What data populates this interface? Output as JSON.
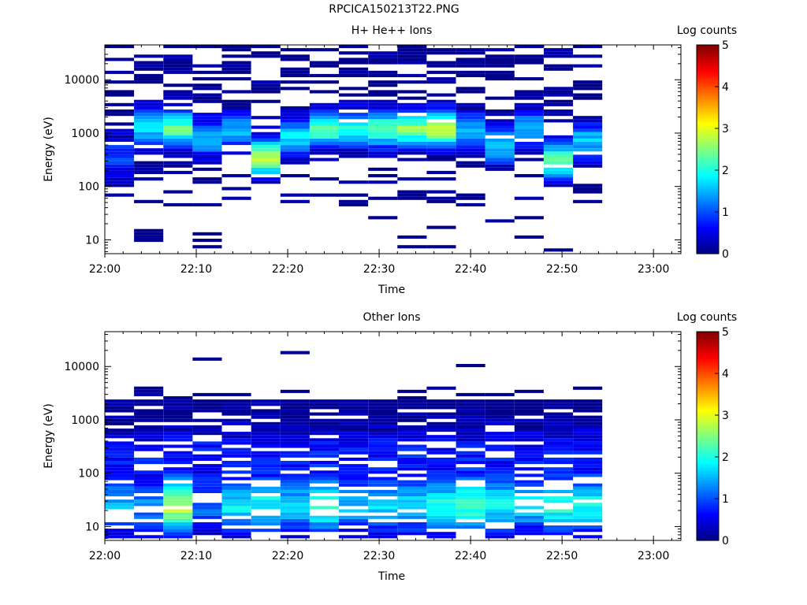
{
  "page": {
    "title": "RPCICA150213T22.PNG"
  },
  "chart_data": [
    {
      "type": "heatmap",
      "title": "H+ He++ Ions",
      "xlabel": "Time",
      "ylabel": "Energy (eV)",
      "x_ticks": [
        "22:00",
        "22:10",
        "22:20",
        "22:30",
        "22:40",
        "22:50",
        "23:00"
      ],
      "y_ticks": [
        "10",
        "100",
        "1000",
        "10000"
      ],
      "y_scale": "log",
      "ylim": [
        5.5,
        45000
      ],
      "xlim": [
        "22:00",
        "23:03"
      ],
      "colorbar": {
        "label": "Log counts",
        "ticks": [
          "0",
          "1",
          "2",
          "3",
          "4",
          "5"
        ],
        "range": [
          0,
          5
        ]
      },
      "time_bins_min": [
        1.6,
        4.8,
        8.0,
        11.2,
        14.4,
        17.6,
        20.8,
        24.0,
        27.2,
        30.4,
        33.6,
        36.8,
        40.0,
        43.2,
        46.4,
        49.6,
        52.8
      ],
      "approx_peak_energy_eV": [
        350,
        1300,
        1200,
        800,
        1100,
        350,
        800,
        1200,
        1200,
        1200,
        1200,
        1200,
        1100,
        600,
        1200,
        300,
        700
      ],
      "approx_peak_log_counts": [
        1.0,
        1.7,
        2.3,
        1.6,
        1.5,
        2.7,
        1.8,
        2.3,
        2.0,
        2.3,
        2.5,
        2.9,
        1.5,
        1.7,
        1.5,
        2.4,
        1.6
      ]
    },
    {
      "type": "heatmap",
      "title": "Other Ions",
      "xlabel": "Time",
      "ylabel": "Energy (eV)",
      "x_ticks": [
        "22:00",
        "22:10",
        "22:20",
        "22:30",
        "22:40",
        "22:50",
        "23:00"
      ],
      "y_ticks": [
        "10",
        "100",
        "1000",
        "10000"
      ],
      "y_scale": "log",
      "ylim": [
        5.5,
        45000
      ],
      "xlim": [
        "22:00",
        "23:03"
      ],
      "colorbar": {
        "label": "Log counts",
        "ticks": [
          "0",
          "1",
          "2",
          "3",
          "4",
          "5"
        ],
        "range": [
          0,
          5
        ]
      },
      "time_bins_min": [
        1.6,
        4.8,
        8.0,
        11.2,
        14.4,
        17.6,
        20.8,
        24.0,
        27.2,
        30.4,
        33.6,
        36.8,
        40.0,
        43.2,
        46.4,
        49.6,
        52.8
      ],
      "approx_peak_energy_eV": [
        25,
        25,
        25,
        25,
        25,
        25,
        25,
        25,
        25,
        25,
        25,
        25,
        25,
        25,
        25,
        25,
        25
      ],
      "approx_peak_log_counts": [
        1.5,
        1.3,
        2.8,
        1.2,
        1.8,
        1.9,
        1.6,
        2.2,
        1.6,
        1.7,
        1.7,
        1.9,
        2.2,
        1.9,
        1.7,
        2.1,
        1.9
      ]
    }
  ]
}
